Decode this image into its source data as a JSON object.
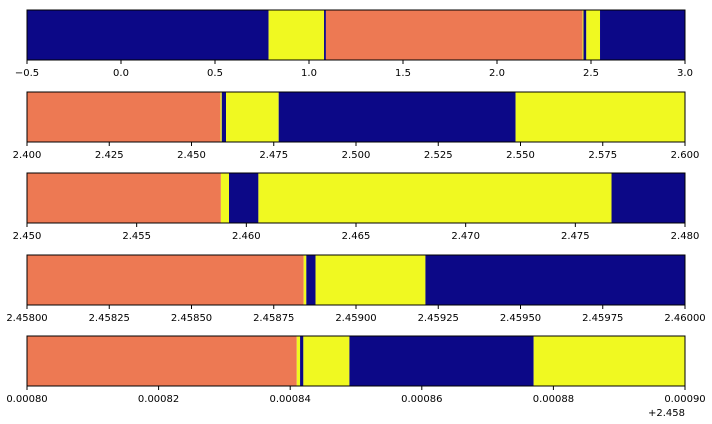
{
  "colors": {
    "navy": "#0c0887",
    "yellow": "#f0f921",
    "salmon": "#ed7953"
  },
  "chart_data": [
    {
      "type": "broken-bar",
      "xlim": [
        -0.5,
        3.0
      ],
      "ticks": [
        -0.5,
        0.0,
        0.5,
        1.0,
        1.5,
        2.0,
        2.5,
        3.0
      ],
      "tick_labels": [
        "−0.5",
        "0.0",
        "0.5",
        "1.0",
        "1.5",
        "2.0",
        "2.5",
        "3.0"
      ],
      "offset_label": "",
      "segments": [
        {
          "start": -0.5,
          "end": 0.785,
          "color": "navy"
        },
        {
          "start": 0.785,
          "end": 1.08,
          "color": "yellow"
        },
        {
          "start": 1.08,
          "end": 1.09,
          "color": "navy"
        },
        {
          "start": 1.09,
          "end": 2.455,
          "color": "salmon"
        },
        {
          "start": 2.455,
          "end": 2.46,
          "color": "yellow"
        },
        {
          "start": 2.46,
          "end": 2.475,
          "color": "navy"
        },
        {
          "start": 2.475,
          "end": 2.548,
          "color": "yellow"
        },
        {
          "start": 2.548,
          "end": 3.0,
          "color": "navy"
        }
      ]
    },
    {
      "type": "broken-bar",
      "xlim": [
        2.4,
        2.6
      ],
      "ticks": [
        2.4,
        2.425,
        2.45,
        2.475,
        2.5,
        2.525,
        2.55,
        2.575,
        2.6
      ],
      "tick_labels": [
        "2.400",
        "2.425",
        "2.450",
        "2.475",
        "2.500",
        "2.525",
        "2.550",
        "2.575",
        "2.600"
      ],
      "offset_label": "",
      "segments": [
        {
          "start": 2.4,
          "end": 2.4588,
          "color": "salmon"
        },
        {
          "start": 2.4588,
          "end": 2.4592,
          "color": "yellow"
        },
        {
          "start": 2.4592,
          "end": 2.4605,
          "color": "navy"
        },
        {
          "start": 2.4605,
          "end": 2.4765,
          "color": "yellow"
        },
        {
          "start": 2.4765,
          "end": 2.5485,
          "color": "navy"
        },
        {
          "start": 2.5485,
          "end": 2.6,
          "color": "yellow"
        }
      ]
    },
    {
      "type": "broken-bar",
      "xlim": [
        2.45,
        2.48
      ],
      "ticks": [
        2.45,
        2.455,
        2.46,
        2.465,
        2.47,
        2.475,
        2.48
      ],
      "tick_labels": [
        "2.450",
        "2.455",
        "2.460",
        "2.465",
        "2.470",
        "2.475",
        "2.480"
      ],
      "offset_label": "",
      "segments": [
        {
          "start": 2.45,
          "end": 2.45884,
          "color": "salmon"
        },
        {
          "start": 2.45884,
          "end": 2.45921,
          "color": "yellow"
        },
        {
          "start": 2.45921,
          "end": 2.46055,
          "color": "navy"
        },
        {
          "start": 2.46055,
          "end": 2.47665,
          "color": "yellow"
        },
        {
          "start": 2.47665,
          "end": 2.48,
          "color": "navy"
        }
      ]
    },
    {
      "type": "broken-bar",
      "xlim": [
        2.458,
        2.46
      ],
      "ticks": [
        2.458,
        2.45825,
        2.4585,
        2.45875,
        2.459,
        2.45925,
        2.4595,
        2.45975,
        2.46
      ],
      "tick_labels": [
        "2.45800",
        "2.45825",
        "2.45850",
        "2.45875",
        "2.45900",
        "2.45925",
        "2.45950",
        "2.45975",
        "2.46000"
      ],
      "offset_label": "",
      "segments": [
        {
          "start": 2.458,
          "end": 2.458841,
          "color": "salmon"
        },
        {
          "start": 2.458841,
          "end": 2.458849,
          "color": "yellow"
        },
        {
          "start": 2.458849,
          "end": 2.458877,
          "color": "navy"
        },
        {
          "start": 2.458877,
          "end": 2.459211,
          "color": "yellow"
        },
        {
          "start": 2.459211,
          "end": 2.46,
          "color": "navy"
        }
      ]
    },
    {
      "type": "broken-bar",
      "xlim": [
        0.0008,
        0.0009
      ],
      "ticks": [
        0.0008,
        0.00082,
        0.00084,
        0.00086,
        0.00088,
        0.0009
      ],
      "tick_labels": [
        "0.00080",
        "0.00082",
        "0.00084",
        "0.00086",
        "0.00088",
        "0.00090"
      ],
      "offset_label": "+2.458",
      "segments": [
        {
          "start": 0.0008,
          "end": 0.000841,
          "color": "salmon"
        },
        {
          "start": 0.000841,
          "end": 0.0008415,
          "color": "yellow"
        },
        {
          "start": 0.0008415,
          "end": 0.000842,
          "color": "navy"
        },
        {
          "start": 0.000842,
          "end": 0.000849,
          "color": "yellow"
        },
        {
          "start": 0.000849,
          "end": 0.000877,
          "color": "navy"
        },
        {
          "start": 0.000877,
          "end": 0.0009,
          "color": "yellow"
        }
      ]
    }
  ]
}
